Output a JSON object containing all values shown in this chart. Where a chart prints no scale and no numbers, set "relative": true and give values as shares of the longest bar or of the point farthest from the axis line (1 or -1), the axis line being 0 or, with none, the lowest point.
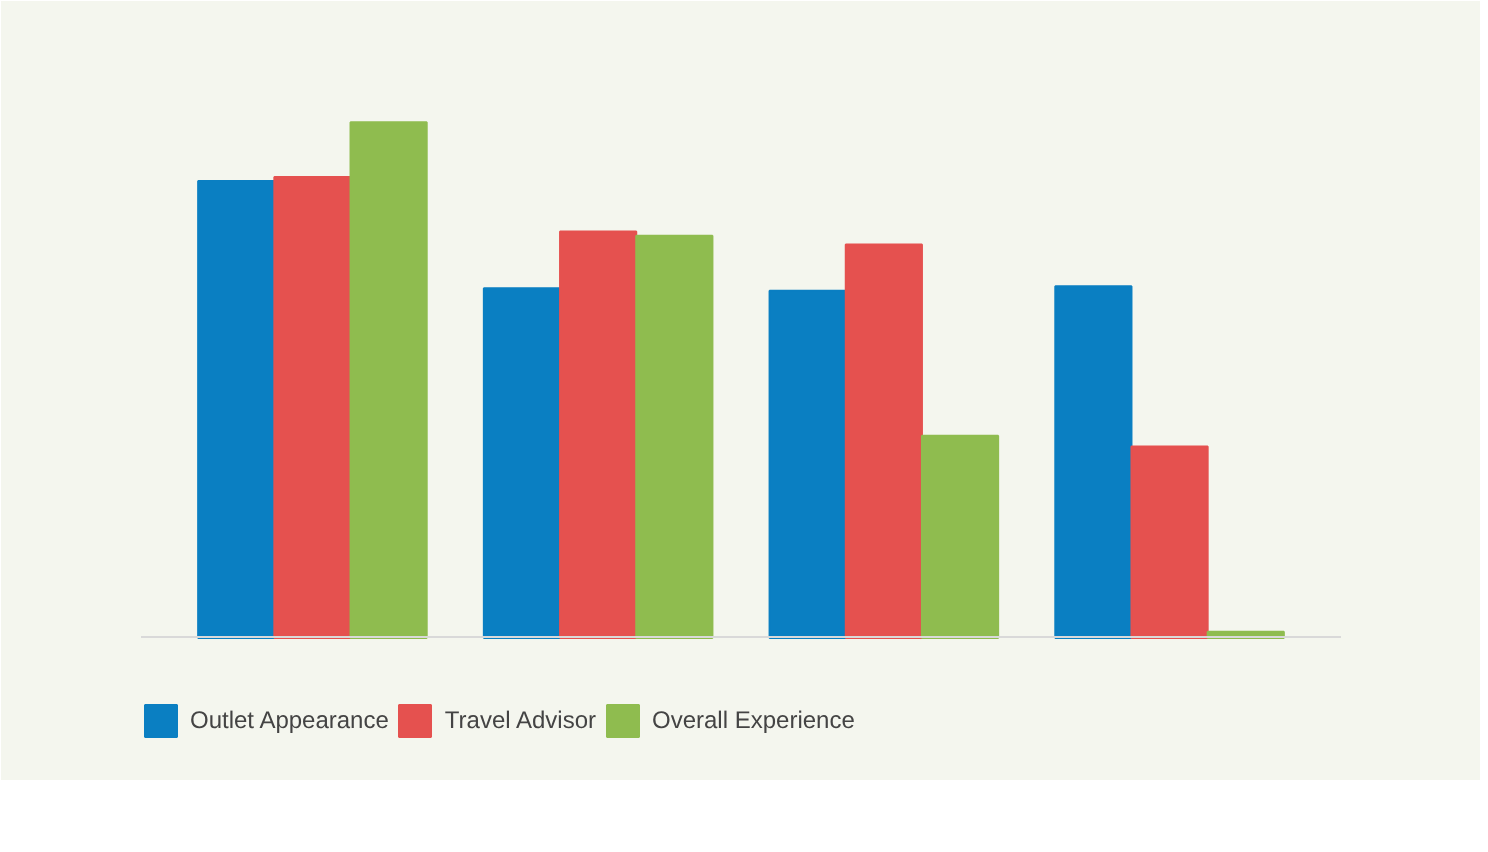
{
  "chart_data": {
    "type": "bar",
    "relative": true,
    "categories": [
      null,
      null,
      null,
      null
    ],
    "series": [
      {
        "name": "Outlet Appearance",
        "color": "#0a7fc2",
        "values": [
          0.886,
          0.678,
          0.673,
          0.682
        ]
      },
      {
        "name": "Travel Advisor",
        "color": "#e5514f",
        "values": [
          0.894,
          0.788,
          0.763,
          0.371
        ]
      },
      {
        "name": "Overall Experience",
        "color": "#8fbc4f",
        "values": [
          1.0,
          0.78,
          0.392,
          0.012
        ]
      }
    ],
    "legend": "bottom"
  }
}
